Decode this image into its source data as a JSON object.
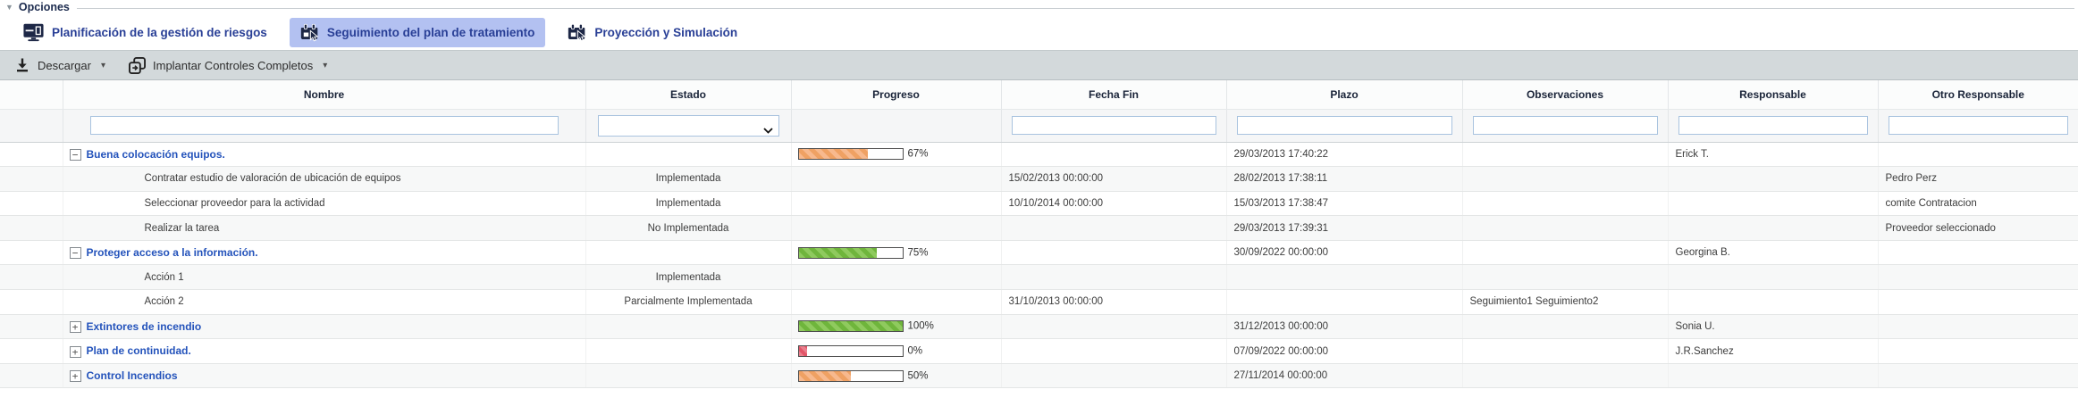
{
  "panel": {
    "legend": "Opciones"
  },
  "icons": {
    "collapse_triangle": "▼",
    "caret_down": "▾",
    "tree_collapse": "−",
    "tree_expand": "+"
  },
  "tabs": [
    {
      "label": "Planificación de la gestión de riesgos",
      "icon": "monitor-icon",
      "selected": false
    },
    {
      "label": "Seguimiento del plan de tratamiento",
      "icon": "calendar-cursor-icon",
      "selected": true
    },
    {
      "label": "Proyección y Simulación",
      "icon": "calendar-cursor-icon",
      "selected": false
    }
  ],
  "toolbar": {
    "download_label": "Descargar",
    "implant_label": "Implantar Controles Completos"
  },
  "table": {
    "columns": [
      "Nombre",
      "Estado",
      "Progreso",
      "Fecha Fin",
      "Plazo",
      "Observaciones",
      "Responsable",
      "Otro Responsable"
    ],
    "filters": {
      "nombre_value": "",
      "estado_selected": "",
      "fecha_fin_value": "",
      "plazo_value": "",
      "observaciones_value": "",
      "responsable_value": "",
      "otro_responsable_value": ""
    },
    "rows": [
      {
        "level": 1,
        "toggle": "minus",
        "nombre": "Buena colocación equipos.",
        "estado": "",
        "progress": {
          "pct": 67,
          "label": "67%",
          "color": "orange"
        },
        "fecha_fin": "",
        "plazo": "29/03/2013 17:40:22",
        "observaciones": "",
        "responsable": "Erick T.",
        "otro_responsable": ""
      },
      {
        "level": 2,
        "toggle": null,
        "nombre": "Contratar estudio de valoración de ubicación de equipos",
        "estado": "Implementada",
        "progress": null,
        "fecha_fin": "15/02/2013 00:00:00",
        "plazo": "28/02/2013 17:38:11",
        "observaciones": "",
        "responsable": "",
        "otro_responsable": "Pedro Perz"
      },
      {
        "level": 2,
        "toggle": null,
        "nombre": "Seleccionar proveedor para la actividad",
        "estado": "Implementada",
        "progress": null,
        "fecha_fin": "10/10/2014 00:00:00",
        "plazo": "15/03/2013 17:38:47",
        "observaciones": "",
        "responsable": "",
        "otro_responsable": "comite Contratacion"
      },
      {
        "level": 2,
        "toggle": null,
        "nombre": "Realizar la tarea",
        "estado": "No Implementada",
        "progress": null,
        "fecha_fin": "",
        "plazo": "29/03/2013 17:39:31",
        "observaciones": "",
        "responsable": "",
        "otro_responsable": "Proveedor seleccionado"
      },
      {
        "level": 1,
        "toggle": "minus",
        "nombre": "Proteger acceso a la información.",
        "estado": "",
        "progress": {
          "pct": 75,
          "label": "75%",
          "color": "green"
        },
        "fecha_fin": "",
        "plazo": "30/09/2022 00:00:00",
        "observaciones": "",
        "responsable": "Georgina B.",
        "otro_responsable": ""
      },
      {
        "level": 2,
        "toggle": null,
        "nombre": "Acción 1",
        "estado": "Implementada",
        "progress": null,
        "fecha_fin": "",
        "plazo": "",
        "observaciones": "",
        "responsable": "",
        "otro_responsable": ""
      },
      {
        "level": 2,
        "toggle": null,
        "nombre": "Acción 2",
        "estado": "Parcialmente Implementada",
        "progress": null,
        "fecha_fin": "31/10/2013 00:00:00",
        "plazo": "",
        "observaciones": "Seguimiento1 Seguimiento2",
        "responsable": "",
        "otro_responsable": ""
      },
      {
        "level": 1,
        "toggle": "plus",
        "nombre": "Extintores de incendio",
        "estado": "",
        "progress": {
          "pct": 100,
          "label": "100%",
          "color": "green"
        },
        "fecha_fin": "",
        "plazo": "31/12/2013 00:00:00",
        "observaciones": "",
        "responsable": "Sonia U.",
        "otro_responsable": ""
      },
      {
        "level": 1,
        "toggle": "plus",
        "nombre": "Plan de continuidad.",
        "estado": "",
        "progress": {
          "pct": 8,
          "label": "0%",
          "color": "red"
        },
        "fecha_fin": "",
        "plazo": "07/09/2022 00:00:00",
        "observaciones": "",
        "responsable": "J.R.Sanchez",
        "otro_responsable": ""
      },
      {
        "level": 1,
        "toggle": "plus",
        "nombre": "Control Incendios",
        "estado": "",
        "progress": {
          "pct": 50,
          "label": "50%",
          "color": "orange"
        },
        "fecha_fin": "",
        "plazo": "27/11/2014 00:00:00",
        "observaciones": "",
        "responsable": "",
        "otro_responsable": ""
      }
    ]
  },
  "colors": {
    "selected_tab_bg": "#b3c1f1",
    "tab_text": "#293f96",
    "row_link_text": "#2453bb",
    "toolbar_bg": "#d3d9db",
    "progress_orange": "#efa163",
    "progress_green": "#6fb53c",
    "progress_red": "#e25568"
  }
}
